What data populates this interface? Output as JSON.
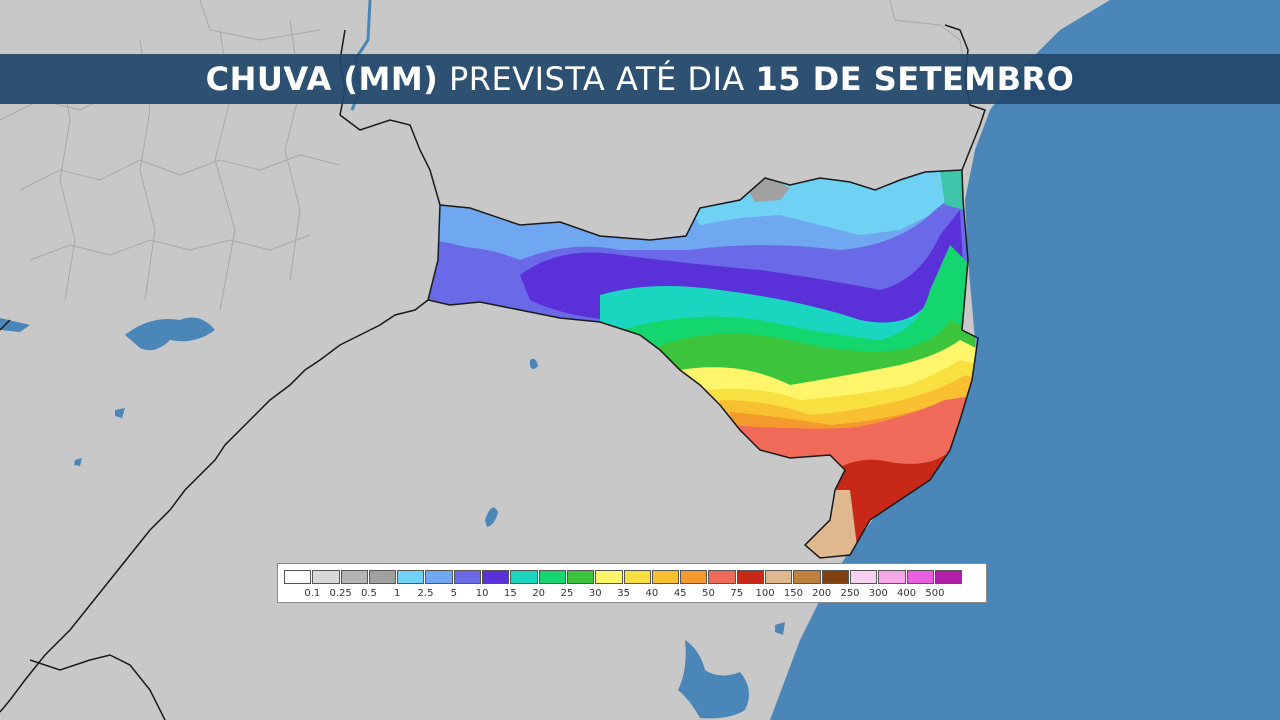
{
  "title": {
    "part1": "CHUVA (MM)",
    "part2": "PREVISTA ATÉ DIA",
    "part3": "15 DE SETEMBRO"
  },
  "legend": {
    "colors": [
      "#ffffff",
      "#d8d8d8",
      "#b4b4b4",
      "#a0a0a0",
      "#6fd2f5",
      "#6fa8f0",
      "#6a6ae8",
      "#5a30d8",
      "#1ad6c0",
      "#14d66e",
      "#3cc43c",
      "#fff56a",
      "#f8e040",
      "#f8c030",
      "#f49a2c",
      "#f06a5a",
      "#c82818",
      "#e0b890",
      "#c08040",
      "#804010",
      "#f8d0f0",
      "#f4a8e8",
      "#e860e0",
      "#b020a8"
    ],
    "labels": [
      "0.1",
      "0.25",
      "0.5",
      "1",
      "2.5",
      "5",
      "10",
      "15",
      "20",
      "25",
      "30",
      "35",
      "40",
      "45",
      "50",
      "75",
      "100",
      "150",
      "200",
      "250",
      "300",
      "400",
      "500"
    ]
  },
  "colors": {
    "land": "#c8c8c8",
    "ocean": "#4a86b8",
    "water": "#4a86b8",
    "title_bar": "#224669",
    "title_text": "#ffffff"
  }
}
